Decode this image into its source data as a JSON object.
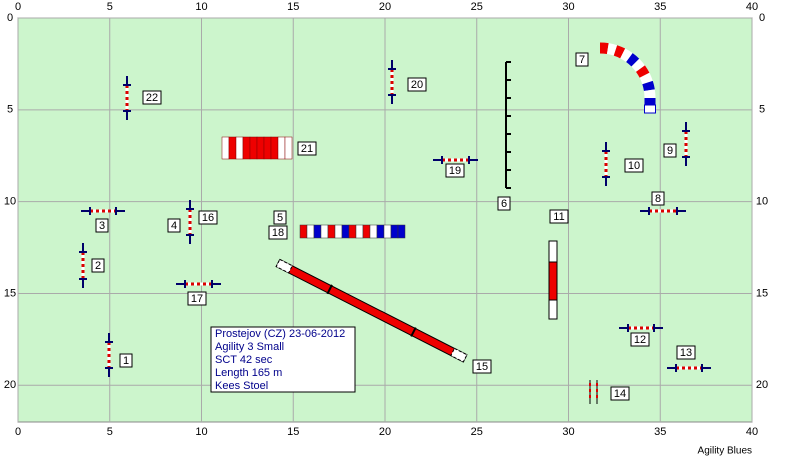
{
  "course": {
    "axes": {
      "xlim": [
        0,
        40
      ],
      "ylim": [
        0,
        22
      ],
      "xticks": [
        0,
        5,
        10,
        15,
        20,
        25,
        30,
        35,
        40
      ],
      "yticks": [
        0,
        5,
        10,
        15,
        20
      ]
    },
    "obstacle_numbers": [
      "1",
      "2",
      "3",
      "4",
      "5",
      "6",
      "7",
      "8",
      "9",
      "10",
      "11",
      "12",
      "13",
      "14",
      "15",
      "16",
      "17",
      "18",
      "19",
      "20",
      "21",
      "22"
    ],
    "info": [
      "Prostejov (CZ) 23-06-2012",
      "Agility 3 Small",
      "SCT 42 sec",
      "Length 165 m",
      "Kees Stoel"
    ],
    "footer": "Agility Blues"
  }
}
